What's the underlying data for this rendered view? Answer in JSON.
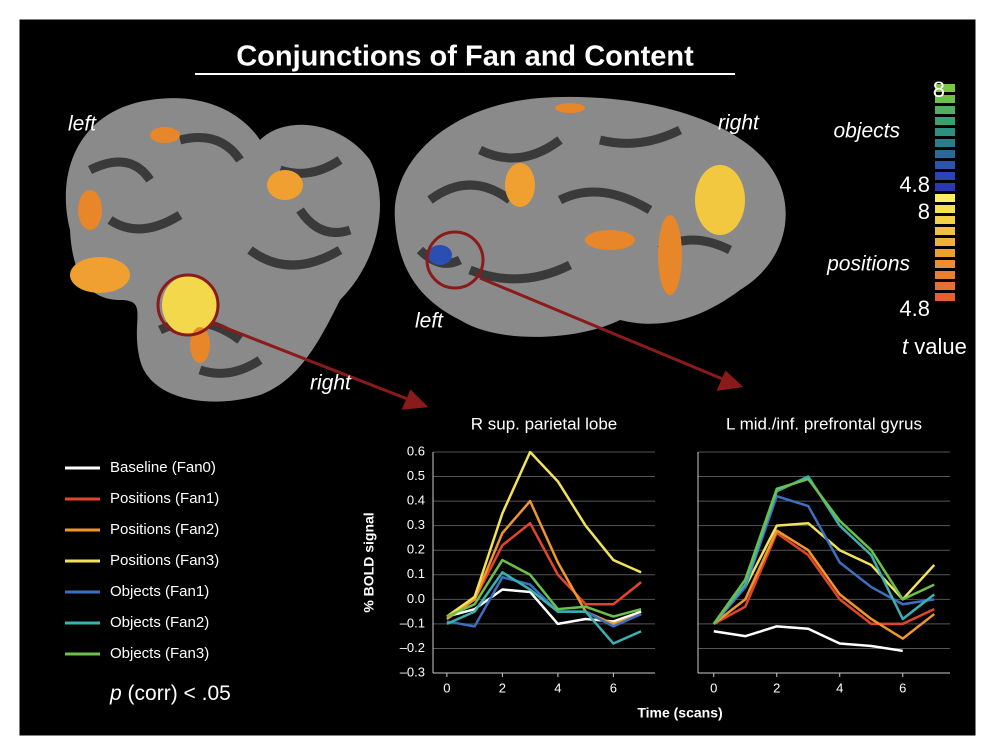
{
  "title": "Conjunctions of Fan and Content",
  "brain_labels": [
    "left",
    "right",
    "left",
    "right"
  ],
  "colorbar": {
    "labels": [
      "8",
      "objects",
      "4.8",
      "8",
      "positions",
      "4.8"
    ],
    "t_label": {
      "italic": "t",
      "rest": "value"
    }
  },
  "x_label": "Time (scans)",
  "significance": {
    "italic": "p",
    "rest": "(corr) < .05"
  },
  "chart_data": [
    {
      "type": "line",
      "title": "R sup. parietal lobe",
      "y_label": "% BOLD signal",
      "show_ytick_labels": true,
      "grid": true,
      "x": [
        0,
        1,
        2,
        3,
        4,
        5,
        6,
        7
      ],
      "xlim": [
        -0.5,
        7.5
      ],
      "xticks": [
        0,
        2,
        4,
        6
      ],
      "ylim": [
        -0.3,
        0.6
      ],
      "yticks": [
        {
          "value": -0.3,
          "label": "–0.3"
        },
        {
          "value": -0.2,
          "label": "–0.2"
        },
        {
          "value": -0.1,
          "label": "–0.1"
        },
        {
          "value": 0,
          "label": "0.0"
        },
        0.1,
        0.2,
        0.3,
        0.4,
        0.5,
        0.6
      ],
      "series": [
        {
          "name": "Baseline (Fan0)",
          "color": "#ffffff",
          "values": [
            -0.07,
            -0.04,
            0.04,
            0.03,
            -0.1,
            -0.08,
            -0.09,
            -0.05
          ]
        },
        {
          "name": "Positions (Fan1)",
          "color": "#e2452b",
          "values": [
            -0.08,
            0.0,
            0.22,
            0.31,
            0.1,
            -0.02,
            -0.02,
            0.07
          ]
        },
        {
          "name": "Positions (Fan2)",
          "color": "#f0962e",
          "values": [
            -0.08,
            0.0,
            0.27,
            0.4,
            0.15,
            -0.05,
            -0.1,
            -0.06
          ]
        },
        {
          "name": "Positions (Fan3)",
          "color": "#f2e25a",
          "values": [
            -0.07,
            0.01,
            0.35,
            0.6,
            0.48,
            0.3,
            0.16,
            0.11
          ]
        },
        {
          "name": "Objects (Fan1)",
          "color": "#3b6fc0",
          "values": [
            -0.09,
            -0.11,
            0.09,
            0.06,
            -0.05,
            -0.05,
            -0.11,
            -0.06
          ]
        },
        {
          "name": "Objects (Fan2)",
          "color": "#3ab0b0",
          "values": [
            -0.1,
            -0.05,
            0.11,
            0.04,
            -0.05,
            -0.05,
            -0.18,
            -0.13
          ]
        },
        {
          "name": "Objects (Fan3)",
          "color": "#6cc04a",
          "values": [
            -0.07,
            -0.02,
            0.16,
            0.1,
            -0.04,
            -0.03,
            -0.07,
            -0.04
          ]
        }
      ]
    },
    {
      "type": "line",
      "title": "L mid./inf. prefrontal gyrus",
      "show_ytick_labels": false,
      "grid": true,
      "x": [
        0,
        1,
        2,
        3,
        4,
        5,
        6,
        7
      ],
      "xlim": [
        -0.5,
        7.5
      ],
      "xticks": [
        0,
        2,
        4,
        6
      ],
      "ylim": [
        -0.3,
        0.6
      ],
      "yticks": [
        -0.3,
        -0.2,
        -0.1,
        0,
        0.1,
        0.2,
        0.3,
        0.4,
        0.5,
        0.6
      ],
      "series": [
        {
          "color": "#ffffff",
          "values": [
            -0.13,
            -0.15,
            -0.11,
            -0.12,
            -0.18,
            -0.19,
            -0.21,
            null
          ]
        },
        {
          "color": "#e2452b",
          "values": [
            -0.1,
            -0.03,
            0.27,
            0.18,
            0.0,
            -0.1,
            -0.1,
            -0.04
          ]
        },
        {
          "color": "#f0962e",
          "values": [
            -0.1,
            0.0,
            0.28,
            0.2,
            0.02,
            -0.08,
            -0.16,
            -0.06
          ]
        },
        {
          "color": "#f2e25a",
          "values": [
            -0.1,
            0.05,
            0.3,
            0.31,
            0.2,
            0.14,
            0.0,
            0.14
          ]
        },
        {
          "color": "#3b6fc0",
          "values": [
            -0.1,
            0.05,
            0.42,
            0.38,
            0.15,
            0.05,
            -0.02,
            0.0
          ]
        },
        {
          "color": "#3ab0b0",
          "values": [
            -0.1,
            0.06,
            0.44,
            0.5,
            0.3,
            0.18,
            -0.08,
            0.02
          ]
        },
        {
          "color": "#6cc04a",
          "values": [
            -0.1,
            0.08,
            0.45,
            0.49,
            0.32,
            0.2,
            0.0,
            0.06
          ]
        }
      ]
    }
  ]
}
